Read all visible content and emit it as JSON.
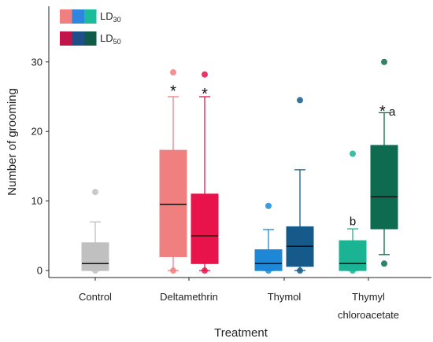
{
  "chart_data": {
    "type": "box",
    "xlabel": "Treatment",
    "ylabel": "Number of grooming",
    "ylim": [
      -1,
      38
    ],
    "yticks": [
      0,
      10,
      20,
      30
    ],
    "categories": [
      "Control",
      "Deltamethrin",
      "Thymol",
      "Thymyl chloroacetate"
    ],
    "category_labels": [
      {
        "lines": [
          "Control"
        ]
      },
      {
        "lines": [
          "Deltamethrin"
        ]
      },
      {
        "lines": [
          "Thymol"
        ]
      },
      {
        "lines": [
          "Thymyl",
          "chloroacetate"
        ]
      }
    ],
    "legend": [
      {
        "base": "LD",
        "sub": "30",
        "colors": [
          "#f08080",
          "#2e86de",
          "#1abc9c"
        ]
      },
      {
        "base": "LD",
        "sub": "50",
        "colors": [
          "#c0144a",
          "#1e4f8a",
          "#0e5c47"
        ]
      }
    ],
    "legend_position": "top-left",
    "boxes": [
      {
        "category": "Control",
        "series": "control",
        "color": "#c0c0c0",
        "q1": 0,
        "median": 1,
        "q3": 4,
        "whisker_low": 0,
        "whisker_high": 7,
        "outliers": [
          11.3,
          0
        ]
      },
      {
        "category": "Deltamethrin",
        "series": "LD30",
        "color": "#f08080",
        "q1": 2,
        "median": 9.5,
        "q3": 17.3,
        "whisker_low": 0,
        "whisker_high": 25,
        "outliers": [
          28.5,
          0
        ]
      },
      {
        "category": "Deltamethrin",
        "series": "LD50",
        "color": "#e8134a",
        "q1": 1,
        "median": 5,
        "q3": 11,
        "whisker_low": 0,
        "whisker_high": 25,
        "outliers": [
          28.2,
          0
        ]
      },
      {
        "category": "Thymol",
        "series": "LD30",
        "color": "#1e88d6",
        "q1": 0,
        "median": 1,
        "q3": 3,
        "whisker_low": 0,
        "whisker_high": 5.9,
        "outliers": [
          9.3,
          0
        ]
      },
      {
        "category": "Thymol",
        "series": "LD50",
        "color": "#155a8a",
        "q1": 0.6,
        "median": 3.5,
        "q3": 6.3,
        "whisker_low": 0,
        "whisker_high": 14.5,
        "outliers": [
          24.5,
          0
        ]
      },
      {
        "category": "Thymyl chloroacetate",
        "series": "LD30",
        "color": "#1ab394",
        "q1": 0,
        "median": 1,
        "q3": 4.3,
        "whisker_low": 0,
        "whisker_high": 6,
        "outliers": [
          16.8,
          0
        ]
      },
      {
        "category": "Thymyl chloroacetate",
        "series": "LD50",
        "color": "#0e6b50",
        "q1": 6,
        "median": 10.6,
        "q3": 18,
        "whisker_low": 2.3,
        "whisker_high": 22.7,
        "outliers": [
          30,
          1
        ]
      }
    ],
    "annotations": [
      {
        "text": "*",
        "category": "Deltamethrin",
        "series": "LD30",
        "y": 26.2
      },
      {
        "text": "*",
        "category": "Deltamethrin",
        "series": "LD50",
        "y": 25.8
      },
      {
        "text": "b",
        "category": "Thymyl chloroacetate",
        "series": "LD30",
        "y": 6.5
      },
      {
        "text": "* a",
        "category": "Thymyl chloroacetate",
        "series": "LD50",
        "y": 23.3
      }
    ]
  }
}
